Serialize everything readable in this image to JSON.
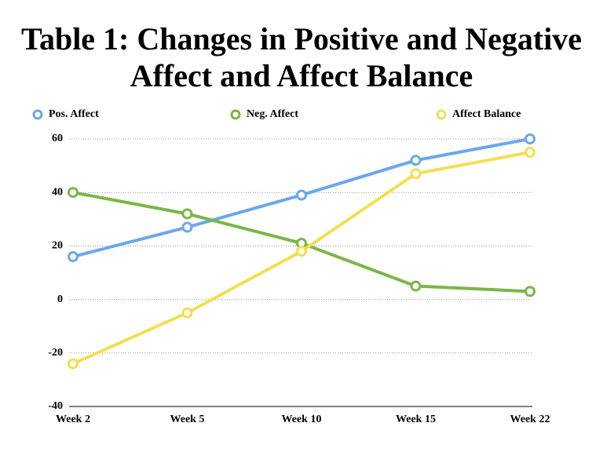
{
  "chart_data": {
    "type": "line",
    "title": "Table 1: Changes in Positive and Negative Affect and Affect Balance",
    "categories": [
      "Week 2",
      "Week 5",
      "Week 10",
      "Week 15",
      "Week 22"
    ],
    "series": [
      {
        "name": "Pos. Affect",
        "color": "#6aa7ee",
        "values": [
          16,
          27,
          39,
          52,
          60
        ]
      },
      {
        "name": "Neg. Affect",
        "color": "#7ab648",
        "values": [
          40,
          32,
          21,
          5,
          3
        ]
      },
      {
        "name": "Affect Balance",
        "color": "#f4de52",
        "values": [
          -24,
          -5,
          18,
          47,
          55
        ]
      }
    ],
    "ylim": [
      -40,
      60
    ],
    "yticks": [
      -40,
      -20,
      0,
      20,
      40,
      60
    ],
    "grid": true,
    "legend": "top"
  }
}
